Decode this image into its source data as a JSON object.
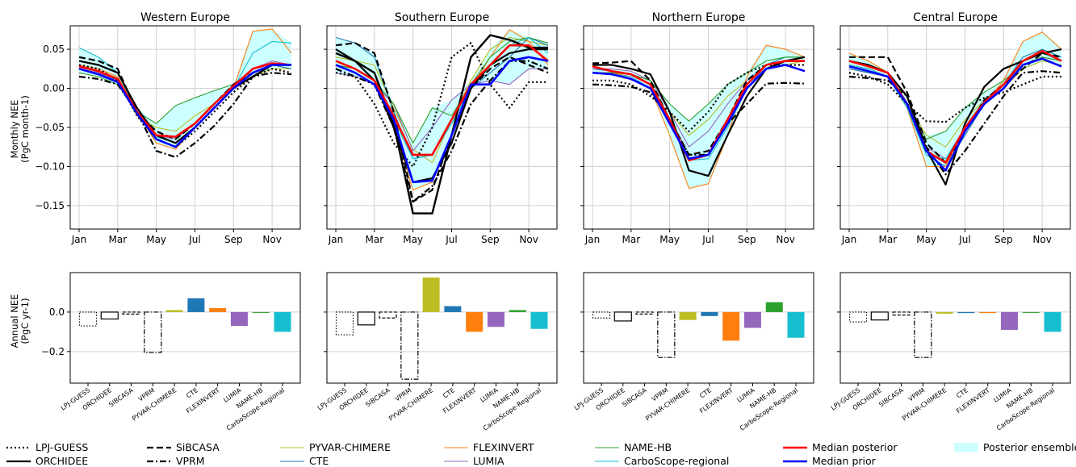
{
  "colors": {
    "LPJ-GUESS": "#000000",
    "ORCHIDEE": "#000000",
    "SiBCASA": "#000000",
    "VPRM": "#000000",
    "PYVAR-CHIMERE": "#bcbd22",
    "CTE": "#1f77b4",
    "FLEXINVERT": "#ff7f0e",
    "LUMIA": "#9467bd",
    "NAME-HB": "#2ca02c",
    "CarboScope-regional": "#17becf",
    "Median posterior": "#ff0000",
    "Median prior": "#0000ff",
    "Posterior ensemble": "#ccffff"
  },
  "chart_data": {
    "type": "line",
    "ylabel_monthly": "Monthly NEE\n(PgC month-1)",
    "ylabel_annual": "Annual NEE\n(PgC yr-1)",
    "month_ticks": [
      "Jan",
      "Mar",
      "May",
      "Jul",
      "Sep",
      "Nov"
    ],
    "monthly_yticks": [
      "0.05",
      "0.00",
      "−0.05",
      "−0.10",
      "−0.15"
    ],
    "annual_yticks": [
      "0.0",
      "−0.2"
    ],
    "monthly_ylim": [
      -0.18,
      0.08
    ],
    "annual_ylim": [
      -0.36,
      0.2
    ],
    "bar_categories": [
      "LPJ-GUESS",
      "ORCHIDEE",
      "SIBCASA",
      "VPRM",
      "PYVAR-CHIMERE",
      "CTE",
      "FLEXINVERT",
      "LUMIA",
      "NAME-HB",
      "CarboScope-Regional"
    ],
    "legend": [
      [
        "LPJ-GUESS",
        "SiBCASA",
        "PYVAR-CHIMERE",
        "FLEXINVERT",
        "NAME-HB",
        "Median posterior",
        "Posterior ensemble"
      ],
      [
        "ORCHIDEE",
        "VPRM",
        "CTE",
        "LUMIA",
        "CarboScope-regional",
        "Median prior"
      ]
    ],
    "panels": [
      {
        "title": "Western Europe",
        "series": {
          "LPJ-GUESS": [
            0.03,
            0.025,
            0.01,
            -0.035,
            -0.065,
            -0.075,
            -0.055,
            -0.03,
            -0.005,
            0.015,
            0.025,
            0.02
          ],
          "ORCHIDEE": [
            0.035,
            0.03,
            0.02,
            -0.025,
            -0.06,
            -0.07,
            -0.05,
            -0.025,
            0,
            0.015,
            0.03,
            0.03
          ],
          "SiBCASA": [
            0.04,
            0.035,
            0.025,
            -0.03,
            -0.055,
            -0.065,
            -0.045,
            -0.02,
            0.005,
            0.02,
            0.03,
            0.03
          ],
          "VPRM": [
            0.015,
            0.012,
            0.005,
            -0.03,
            -0.08,
            -0.088,
            -0.07,
            -0.048,
            -0.02,
            0.015,
            0.02,
            0.018
          ],
          "PYVAR-CHIMERE": [
            0.025,
            0.02,
            0.01,
            -0.035,
            -0.05,
            -0.055,
            -0.035,
            -0.02,
            0,
            0.015,
            0.025,
            0.025
          ],
          "CTE": [
            0.025,
            0.02,
            0.01,
            -0.03,
            -0.06,
            -0.07,
            -0.05,
            -0.025,
            0,
            0.02,
            0.03,
            0.025
          ],
          "FLEXINVERT": [
            0.03,
            0.025,
            0.015,
            -0.03,
            -0.07,
            -0.078,
            -0.05,
            -0.025,
            0,
            0.073,
            0.076,
            0.045
          ],
          "LUMIA": [
            0.025,
            0.02,
            0.01,
            -0.03,
            -0.06,
            -0.065,
            -0.045,
            -0.02,
            0.005,
            0.025,
            0.035,
            0.03
          ],
          "NAME-HB": [
            0.02,
            0.015,
            0.005,
            -0.03,
            -0.045,
            -0.022,
            -0.012,
            -0.003,
            0.005,
            0.02,
            0.03,
            0.03
          ],
          "CarboScope-regional": [
            0.052,
            0.04,
            0.02,
            -0.03,
            -0.062,
            -0.07,
            -0.05,
            -0.025,
            0,
            0.045,
            0.06,
            0.058
          ],
          "Median posterior": [
            0.028,
            0.022,
            0.012,
            -0.03,
            -0.06,
            -0.062,
            -0.045,
            -0.02,
            0.003,
            0.025,
            0.032,
            0.03
          ],
          "Median prior": [
            0.025,
            0.018,
            0.008,
            -0.032,
            -0.065,
            -0.075,
            -0.05,
            -0.025,
            0,
            0.02,
            0.03,
            0.03
          ],
          "ensemble_upper": [
            0.052,
            0.04,
            0.025,
            -0.025,
            -0.045,
            -0.022,
            -0.012,
            -0.003,
            0.005,
            0.073,
            0.076,
            0.058
          ],
          "ensemble_lower": [
            0.02,
            0.015,
            0.005,
            -0.035,
            -0.07,
            -0.078,
            -0.05,
            -0.025,
            0,
            0.015,
            0.025,
            0.025
          ]
        },
        "bars": {
          "LPJ-GUESS": -0.07,
          "ORCHIDEE": -0.035,
          "SIBCASA": -0.01,
          "VPRM": -0.205,
          "PYVAR-CHIMERE": 0.01,
          "CTE": 0.07,
          "FLEXINVERT": 0.02,
          "LUMIA": -0.07,
          "NAME-HB": -0.003,
          "CarboScope-Regional": -0.1
        }
      },
      {
        "title": "Southern Europe",
        "series": {
          "LPJ-GUESS": [
            0.02,
            0.015,
            -0.02,
            -0.07,
            -0.1,
            -0.05,
            0.04,
            0.058,
            0.005,
            -0.025,
            0.008,
            0.008
          ],
          "ORCHIDEE": [
            0.05,
            0.035,
            0.01,
            -0.05,
            -0.12,
            -0.115,
            -0.07,
            0,
            0.03,
            0.045,
            0.05,
            0.05
          ],
          "SiBCASA": [
            0.055,
            0.058,
            0.045,
            -0.03,
            -0.145,
            -0.13,
            -0.06,
            0,
            0.025,
            0.04,
            0.03,
            0.02
          ],
          "VPRM": [
            0.025,
            0.015,
            0.005,
            -0.05,
            -0.145,
            -0.125,
            -0.08,
            -0.02,
            0.01,
            0.035,
            0.035,
            0.025
          ],
          "PYVAR-CHIMERE": [
            0.04,
            0.035,
            0.03,
            -0.025,
            -0.078,
            -0.095,
            -0.04,
            0.01,
            0.05,
            0.065,
            0.06,
            0.055
          ],
          "CTE": [
            0.065,
            0.058,
            0.04,
            -0.03,
            -0.09,
            -0.085,
            -0.04,
            0,
            0.02,
            0.04,
            0.065,
            0.055
          ],
          "FLEXINVERT": [
            0.03,
            0.025,
            0.01,
            -0.05,
            -0.13,
            -0.12,
            -0.06,
            0,
            0.04,
            0.075,
            0.06,
            0.03
          ],
          "LUMIA": [
            0.02,
            0.015,
            0.005,
            -0.02,
            -0.08,
            -0.05,
            -0.015,
            0.005,
            0.01,
            0.005,
            0.025,
            0.025
          ],
          "NAME-HB": [
            0.03,
            0.025,
            0.01,
            -0.02,
            -0.07,
            -0.025,
            -0.035,
            0.005,
            0.04,
            0.06,
            0.065,
            0.058
          ],
          "CarboScope-regional": [
            0.045,
            0.035,
            0.01,
            -0.04,
            -0.09,
            -0.085,
            -0.045,
            0,
            0.03,
            0.055,
            0.065,
            0.045
          ],
          "Median posterior": [
            0.035,
            0.025,
            0.01,
            -0.035,
            -0.085,
            -0.085,
            -0.04,
            0.005,
            0.03,
            0.055,
            0.055,
            0.035
          ],
          "Median prior": [
            0.03,
            0.02,
            0.005,
            -0.04,
            -0.12,
            -0.118,
            -0.06,
            0.005,
            0.005,
            0.035,
            0.04,
            0.035
          ],
          "Black solid": [
            0.045,
            0.035,
            0.02,
            -0.045,
            -0.16,
            -0.16,
            -0.06,
            0.04,
            0.068,
            0.062,
            0.052,
            0.052
          ],
          "ensemble_upper": [
            0.065,
            0.058,
            0.045,
            -0.02,
            -0.07,
            -0.025,
            -0.015,
            0.01,
            0.05,
            0.075,
            0.065,
            0.058
          ],
          "ensemble_lower": [
            0.02,
            0.015,
            0.005,
            -0.05,
            -0.13,
            -0.12,
            -0.06,
            0,
            0.01,
            0.005,
            0.025,
            0.025
          ]
        },
        "bars": {
          "LPJ-GUESS": -0.115,
          "ORCHIDEE": -0.065,
          "SIBCASA": -0.03,
          "VPRM": -0.34,
          "PYVAR-CHIMERE": 0.175,
          "CTE": 0.03,
          "FLEXINVERT": -0.1,
          "LUMIA": -0.075,
          "NAME-HB": 0.01,
          "CarboScope-Regional": -0.085
        }
      },
      {
        "title": "Northern Europe",
        "series": {
          "LPJ-GUESS": [
            0.01,
            0.01,
            0.005,
            -0.01,
            -0.03,
            -0.055,
            -0.03,
            0.005,
            0.02,
            0.03,
            0.03,
            0.03
          ],
          "ORCHIDEE": [
            0.03,
            0.03,
            0.025,
            0.018,
            -0.03,
            -0.105,
            -0.112,
            -0.06,
            -0.01,
            0.025,
            0.035,
            0.04
          ],
          "SiBCASA": [
            0.032,
            0.033,
            0.035,
            0.01,
            -0.04,
            -0.085,
            -0.08,
            -0.04,
            0.01,
            0.03,
            0.035,
            0.035
          ],
          "VPRM": [
            0.005,
            0.004,
            0.002,
            -0.005,
            -0.04,
            -0.085,
            -0.085,
            -0.045,
            -0.02,
            0.006,
            0.007,
            0.006
          ],
          "PYVAR-CHIMERE": [
            0.02,
            0.02,
            0.018,
            0.01,
            -0.03,
            -0.06,
            -0.04,
            -0.01,
            0.01,
            0.025,
            0.03,
            0.035
          ],
          "CTE": [
            0.025,
            0.022,
            0.018,
            0.005,
            -0.04,
            -0.09,
            -0.085,
            -0.045,
            0,
            0.03,
            0.04,
            0.04
          ],
          "FLEXINVERT": [
            0.02,
            0.02,
            0.015,
            0,
            -0.06,
            -0.128,
            -0.122,
            -0.06,
            0.015,
            0.055,
            0.05,
            0.04
          ],
          "LUMIA": [
            0.025,
            0.025,
            0.022,
            0.01,
            -0.03,
            -0.075,
            -0.055,
            -0.02,
            0.01,
            0.03,
            0.035,
            0.035
          ],
          "NAME-HB": [
            0.02,
            0.02,
            0.018,
            0.01,
            -0.02,
            -0.042,
            -0.02,
            0.005,
            0.02,
            0.035,
            0.04,
            0.04
          ],
          "CarboScope-regional": [
            0.02,
            0.018,
            0.015,
            0,
            -0.04,
            -0.092,
            -0.09,
            -0.05,
            0,
            0.025,
            0.035,
            0.035
          ],
          "Median posterior": [
            0.028,
            0.022,
            0.018,
            0.005,
            -0.04,
            -0.092,
            -0.085,
            -0.04,
            0.005,
            0.03,
            0.035,
            0.035
          ],
          "Median prior": [
            0.02,
            0.018,
            0.012,
            0,
            -0.045,
            -0.09,
            -0.085,
            -0.045,
            0,
            0.025,
            0.03,
            0.022
          ],
          "ensemble_upper": [
            0.028,
            0.025,
            0.022,
            0.01,
            -0.02,
            -0.042,
            -0.02,
            0.005,
            0.02,
            0.055,
            0.05,
            0.04
          ],
          "ensemble_lower": [
            0.02,
            0.018,
            0.015,
            0,
            -0.06,
            -0.128,
            -0.122,
            -0.06,
            0,
            0.025,
            0.03,
            0.035
          ]
        },
        "bars": {
          "LPJ-GUESS": -0.03,
          "ORCHIDEE": -0.045,
          "SIBCASA": -0.01,
          "VPRM": -0.23,
          "PYVAR-CHIMERE": -0.04,
          "CTE": -0.02,
          "FLEXINVERT": -0.145,
          "LUMIA": -0.08,
          "NAME-HB": 0.05,
          "CarboScope-Regional": -0.13
        }
      },
      {
        "title": "Central Europe",
        "series": {
          "LPJ-GUESS": [
            0.02,
            0.015,
            0.005,
            -0.02,
            -0.042,
            -0.043,
            -0.025,
            -0.012,
            -0.005,
            0.005,
            0.015,
            0.015
          ],
          "ORCHIDEE": [
            0.035,
            0.03,
            0.02,
            -0.01,
            -0.078,
            -0.123,
            -0.045,
            0.002,
            0.025,
            0.035,
            0.045,
            0.05
          ],
          "SiBCASA": [
            0.04,
            0.04,
            0.04,
            -0.005,
            -0.07,
            -0.095,
            -0.055,
            -0.015,
            0.005,
            0.025,
            0.045,
            0.04
          ],
          "VPRM": [
            0.015,
            0.013,
            0.01,
            -0.01,
            -0.075,
            -0.11,
            -0.08,
            -0.045,
            -0.01,
            0.02,
            0.022,
            0.02
          ],
          "PYVAR-CHIMERE": [
            0.025,
            0.02,
            0.015,
            -0.02,
            -0.06,
            -0.075,
            -0.04,
            -0.015,
            0,
            0.025,
            0.035,
            0.03
          ],
          "CTE": [
            0.025,
            0.02,
            0.015,
            -0.02,
            -0.085,
            -0.1,
            -0.06,
            -0.02,
            0.005,
            0.04,
            0.05,
            0.04
          ],
          "FLEXINVERT": [
            0.045,
            0.035,
            0.02,
            -0.025,
            -0.1,
            -0.1,
            -0.05,
            -0.02,
            0.01,
            0.06,
            0.072,
            0.05
          ],
          "LUMIA": [
            0.035,
            0.028,
            0.02,
            -0.02,
            -0.075,
            -0.09,
            -0.05,
            -0.015,
            0.005,
            0.03,
            0.04,
            0.035
          ],
          "NAME-HB": [
            0.03,
            0.025,
            0.015,
            -0.02,
            -0.065,
            -0.055,
            -0.025,
            -0.005,
            0.01,
            0.03,
            0.04,
            0.035
          ],
          "CarboScope-regional": [
            0.03,
            0.025,
            0.015,
            -0.025,
            -0.085,
            -0.09,
            -0.05,
            -0.015,
            0.005,
            0.035,
            0.045,
            0.035
          ],
          "Median posterior": [
            0.035,
            0.028,
            0.02,
            -0.02,
            -0.08,
            -0.095,
            -0.05,
            -0.018,
            0.005,
            0.035,
            0.048,
            0.035
          ],
          "Median prior": [
            0.028,
            0.022,
            0.015,
            -0.02,
            -0.08,
            -0.105,
            -0.055,
            -0.02,
            0,
            0.03,
            0.038,
            0.028
          ],
          "ensemble_upper": [
            0.045,
            0.035,
            0.02,
            -0.01,
            -0.06,
            -0.055,
            -0.025,
            -0.005,
            0.01,
            0.06,
            0.072,
            0.05
          ],
          "ensemble_lower": [
            0.025,
            0.02,
            0.015,
            -0.025,
            -0.1,
            -0.1,
            -0.06,
            -0.02,
            0,
            0.025,
            0.035,
            0.03
          ]
        },
        "bars": {
          "LPJ-GUESS": -0.05,
          "ORCHIDEE": -0.04,
          "SIBCASA": -0.015,
          "VPRM": -0.23,
          "PYVAR-CHIMERE": -0.008,
          "CTE": -0.005,
          "FLEXINVERT": -0.005,
          "LUMIA": -0.09,
          "NAME-HB": -0.002,
          "CarboScope-Regional": -0.1
        }
      }
    ]
  }
}
